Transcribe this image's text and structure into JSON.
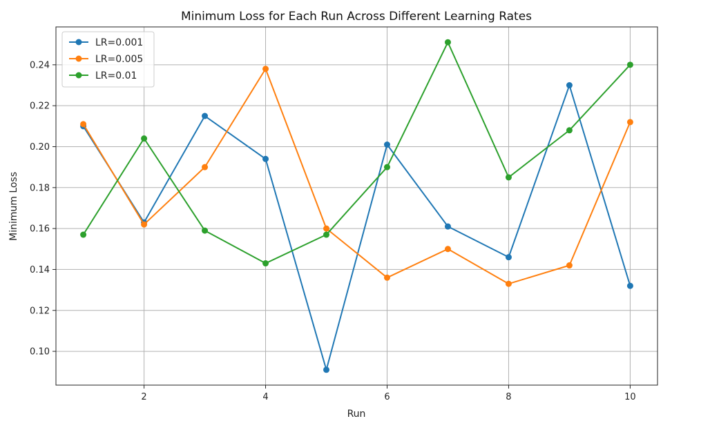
{
  "chart_data": {
    "type": "line",
    "title": "Minimum Loss for Each Run Across Different Learning Rates",
    "xlabel": "Run",
    "ylabel": "Minimum Loss",
    "x": [
      1,
      2,
      3,
      4,
      5,
      6,
      7,
      8,
      9,
      10
    ],
    "xlim": [
      0.55,
      10.45
    ],
    "ylim": [
      0.0835,
      0.2585
    ],
    "xticks": [
      2,
      4,
      6,
      8,
      10
    ],
    "yticks": [
      0.1,
      0.12,
      0.14,
      0.16,
      0.18,
      0.2,
      0.22,
      0.24
    ],
    "ytick_labels": [
      "0.10",
      "0.12",
      "0.14",
      "0.16",
      "0.18",
      "0.20",
      "0.22",
      "0.24"
    ],
    "xtick_labels": [
      "2",
      "4",
      "6",
      "8",
      "10"
    ],
    "grid": true,
    "legend_position": "top-left",
    "marker": "circle",
    "series": [
      {
        "name": "LR=0.001",
        "color": "#1f77b4",
        "values": [
          0.21,
          0.163,
          0.215,
          0.194,
          0.091,
          0.201,
          0.161,
          0.146,
          0.23,
          0.132
        ]
      },
      {
        "name": "LR=0.005",
        "color": "#ff7f0e",
        "values": [
          0.211,
          0.162,
          0.19,
          0.238,
          0.16,
          0.136,
          0.15,
          0.133,
          0.142,
          0.212
        ]
      },
      {
        "name": "LR=0.01",
        "color": "#2ca02c",
        "values": [
          0.157,
          0.204,
          0.159,
          0.143,
          0.157,
          0.19,
          0.251,
          0.185,
          0.208,
          0.24
        ]
      }
    ]
  }
}
